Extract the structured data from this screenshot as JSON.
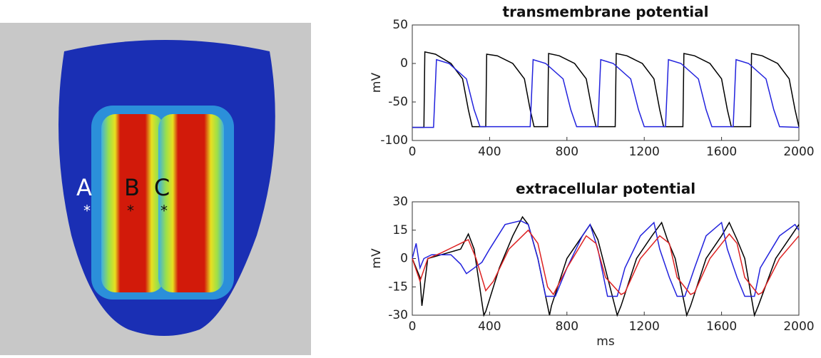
{
  "image": {
    "labels": [
      {
        "text": "A",
        "marker": "*"
      },
      {
        "text": "B",
        "marker": "*"
      },
      {
        "text": "C",
        "marker": "*"
      }
    ]
  },
  "chart_data": [
    {
      "type": "line",
      "title": "transmembrane potential",
      "ylabel": "mV",
      "xlim": [
        0,
        2000
      ],
      "xticks": [
        0,
        400,
        800,
        1200,
        1600,
        2000
      ],
      "ylim": [
        -100,
        50
      ],
      "yticks": [
        -100,
        -50,
        0,
        50
      ],
      "series": [
        {
          "color": "#000000",
          "x": [
            0,
            60,
            65,
            120,
            200,
            260,
            290,
            310,
            380,
            385,
            440,
            520,
            580,
            610,
            630,
            700,
            705,
            760,
            840,
            900,
            930,
            950,
            1050,
            1055,
            1110,
            1190,
            1250,
            1280,
            1300,
            1400,
            1405,
            1460,
            1540,
            1600,
            1630,
            1650,
            1750,
            1755,
            1810,
            1890,
            1950,
            1980,
            2000
          ],
          "values": [
            -83,
            -83,
            15,
            12,
            0,
            -20,
            -60,
            -82,
            -82,
            12,
            10,
            0,
            -20,
            -60,
            -82,
            -82,
            13,
            10,
            0,
            -20,
            -60,
            -82,
            -82,
            13,
            10,
            0,
            -20,
            -60,
            -82,
            -82,
            13,
            10,
            0,
            -20,
            -60,
            -82,
            -82,
            13,
            10,
            0,
            -20,
            -60,
            -82
          ]
        },
        {
          "color": "#2222dd",
          "x": [
            0,
            110,
            125,
            190,
            280,
            320,
            350,
            610,
            625,
            690,
            780,
            820,
            850,
            960,
            975,
            1040,
            1130,
            1170,
            1200,
            1310,
            1325,
            1390,
            1480,
            1520,
            1550,
            1660,
            1675,
            1740,
            1830,
            1870,
            1900,
            2000
          ],
          "values": [
            -83,
            -83,
            5,
            0,
            -20,
            -60,
            -82,
            -82,
            5,
            0,
            -20,
            -60,
            -82,
            -82,
            5,
            0,
            -20,
            -60,
            -82,
            -82,
            5,
            0,
            -20,
            -60,
            -82,
            -82,
            5,
            0,
            -20,
            -60,
            -82,
            -83
          ]
        }
      ]
    },
    {
      "type": "line",
      "title": "extracellular potential",
      "ylabel": "mV",
      "xlabel": "ms",
      "xlim": [
        0,
        2000
      ],
      "xticks": [
        0,
        400,
        800,
        1200,
        1600,
        2000
      ],
      "ylim": [
        -30,
        30
      ],
      "yticks": [
        -30,
        -15,
        0,
        15,
        30
      ],
      "series": [
        {
          "color": "#000000",
          "x": [
            0,
            20,
            40,
            50,
            80,
            150,
            250,
            290,
            320,
            370,
            380,
            450,
            520,
            570,
            600,
            650,
            710,
            720,
            800,
            880,
            920,
            960,
            1060,
            1080,
            1160,
            1240,
            1290,
            1320,
            1360,
            1420,
            1440,
            1520,
            1600,
            1640,
            1680,
            1720,
            1770,
            1790,
            1880,
            1960,
            2000
          ],
          "values": [
            0,
            -5,
            -10,
            -25,
            0,
            2,
            5,
            13,
            5,
            -30,
            -28,
            -5,
            12,
            22,
            18,
            0,
            -30,
            -25,
            0,
            12,
            18,
            10,
            -30,
            -25,
            0,
            12,
            19,
            10,
            0,
            -30,
            -25,
            0,
            12,
            19,
            10,
            0,
            -30,
            -25,
            0,
            12,
            18
          ]
        },
        {
          "color": "#2222dd",
          "x": [
            0,
            20,
            40,
            60,
            100,
            200,
            250,
            280,
            320,
            360,
            400,
            480,
            560,
            600,
            650,
            690,
            740,
            800,
            880,
            920,
            960,
            1010,
            1060,
            1100,
            1180,
            1250,
            1280,
            1330,
            1370,
            1410,
            1460,
            1520,
            1600,
            1630,
            1680,
            1720,
            1770,
            1800,
            1900,
            1980,
            2000
          ],
          "values": [
            0,
            8,
            -5,
            0,
            2,
            2,
            -3,
            -8,
            -5,
            -2,
            5,
            18,
            20,
            18,
            0,
            -20,
            -20,
            -5,
            12,
            18,
            5,
            -20,
            -20,
            -5,
            12,
            19,
            5,
            -10,
            -20,
            -20,
            -5,
            12,
            19,
            5,
            -10,
            -20,
            -20,
            -5,
            12,
            18,
            15
          ]
        },
        {
          "color": "#dd2222",
          "x": [
            0,
            40,
            80,
            150,
            250,
            290,
            330,
            380,
            420,
            500,
            600,
            650,
            700,
            730,
            800,
            900,
            950,
            1000,
            1080,
            1100,
            1180,
            1280,
            1330,
            1370,
            1440,
            1460,
            1540,
            1640,
            1680,
            1720,
            1790,
            1810,
            1900,
            2000
          ],
          "values": [
            0,
            -12,
            0,
            3,
            8,
            10,
            0,
            -17,
            -12,
            5,
            15,
            8,
            -15,
            -19,
            -5,
            12,
            8,
            -10,
            -19,
            -18,
            0,
            12,
            8,
            -10,
            -19,
            -18,
            0,
            13,
            8,
            -10,
            -19,
            -18,
            0,
            12
          ]
        }
      ]
    }
  ]
}
